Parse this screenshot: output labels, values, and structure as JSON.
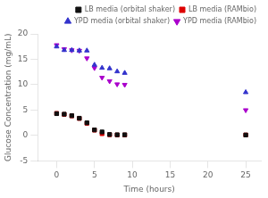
{
  "chart_data": {
    "type": "scatter",
    "xlabel": "Time (hours)",
    "ylabel": "Glucose Concentration (mg/mL)",
    "x": [
      0,
      1,
      2,
      3,
      4,
      5,
      6,
      7,
      8,
      9,
      25
    ],
    "series": [
      {
        "name": "LB media (orbital shaker)",
        "color": "#111111",
        "marker": "square",
        "values": [
          4.3,
          4.2,
          3.9,
          3.4,
          2.5,
          1.1,
          0.7,
          0.2,
          0.15,
          0.15,
          0.1
        ]
      },
      {
        "name": "LB media (RAMbio)",
        "color": "#dd0000",
        "marker": "square",
        "values": [
          4.35,
          4.15,
          3.85,
          3.35,
          2.4,
          1.05,
          0.35,
          0.15,
          0.1,
          0.1,
          0.1
        ]
      },
      {
        "name": "YPD media (orbital shaker)",
        "color": "#3333cc",
        "marker": "triangle_up",
        "values": [
          17.5,
          16.8,
          16.8,
          16.7,
          16.7,
          13.9,
          13.3,
          13.2,
          12.6,
          12.3,
          8.5
        ]
      },
      {
        "name": "YPD media (RAMbio)",
        "color": "#aa00cc",
        "marker": "triangle_down",
        "values": [
          17.8,
          17.0,
          16.8,
          16.7,
          15.2,
          13.3,
          11.4,
          10.7,
          10.1,
          10.0,
          5.0
        ]
      }
    ],
    "xlim": [
      -2.5,
      27
    ],
    "xticks": [
      0,
      5,
      10,
      15,
      20,
      25
    ],
    "ylim": [
      -5,
      20
    ],
    "yticks": [
      -5,
      0,
      5,
      10,
      15,
      20
    ],
    "grid": false,
    "legend": "upper right"
  }
}
